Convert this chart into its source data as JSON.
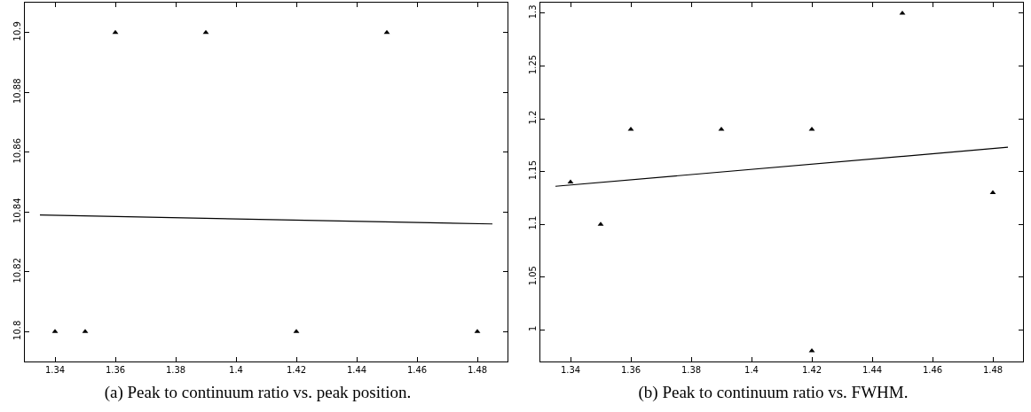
{
  "chart_data": [
    {
      "type": "scatter",
      "title": "(a) Peak to continuum ratio vs. peak position.",
      "marker": "triangle",
      "grid": false,
      "xlim": [
        1.33,
        1.49
      ],
      "xticks": [
        1.34,
        1.36,
        1.38,
        {
          "value": 1.4,
          "label": "1.4"
        },
        1.42,
        1.44,
        1.46,
        1.48
      ],
      "ylim": [
        10.79,
        10.91
      ],
      "yticks": [
        {
          "value": 10.8,
          "label": "10.8"
        },
        10.82,
        10.84,
        10.86,
        10.88,
        {
          "value": 10.9,
          "label": "10.9"
        }
      ],
      "series": [
        {
          "color": "#000000",
          "x": [
            1.34,
            1.35,
            1.36,
            1.39,
            1.42,
            1.45,
            1.48
          ],
          "values": [
            10.8,
            10.8,
            10.9,
            10.9,
            10.8,
            10.9,
            10.8
          ]
        },
        {
          "type": "line",
          "color": "#000000",
          "marker": "none",
          "x": [
            1.335,
            1.485
          ],
          "values": [
            10.839,
            10.836
          ]
        }
      ]
    },
    {
      "type": "scatter",
      "title": "(b) Peak to continuum ratio vs. FWHM.",
      "marker": "triangle",
      "grid": false,
      "xlim": [
        1.33,
        1.49
      ],
      "xticks": [
        1.34,
        1.36,
        1.38,
        {
          "value": 1.4,
          "label": "1.4"
        },
        1.42,
        1.44,
        1.46,
        1.48
      ],
      "ylim": [
        0.97,
        1.31
      ],
      "yticks": [
        1,
        1.05,
        {
          "value": 1.1,
          "label": "1.1"
        },
        1.15,
        {
          "value": 1.2,
          "label": "1.2"
        },
        1.25,
        {
          "value": 1.3,
          "label": "1.3"
        }
      ],
      "series": [
        {
          "color": "#000000",
          "x": [
            1.34,
            1.35,
            1.36,
            1.39,
            1.42,
            1.42,
            1.45,
            1.48
          ],
          "values": [
            1.14,
            1.1,
            1.19,
            1.19,
            1.19,
            0.98,
            1.3,
            1.13
          ]
        },
        {
          "type": "line",
          "color": "#000000",
          "marker": "none",
          "x": [
            1.335,
            1.485
          ],
          "values": [
            1.136,
            1.173
          ]
        }
      ]
    }
  ]
}
